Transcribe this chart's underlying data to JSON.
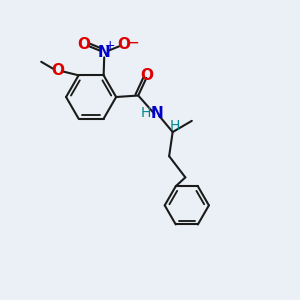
{
  "bg_color": "#eaf0f6",
  "bond_color": "#1a1a1a",
  "oxygen_color": "#dd0000",
  "nitrogen_color": "#0000cc",
  "nh_color": "#008888",
  "lw": 1.5,
  "fig_w": 3.0,
  "fig_h": 3.0,
  "dpi": 100,
  "xlim": [
    0,
    10
  ],
  "ylim": [
    0,
    10
  ]
}
